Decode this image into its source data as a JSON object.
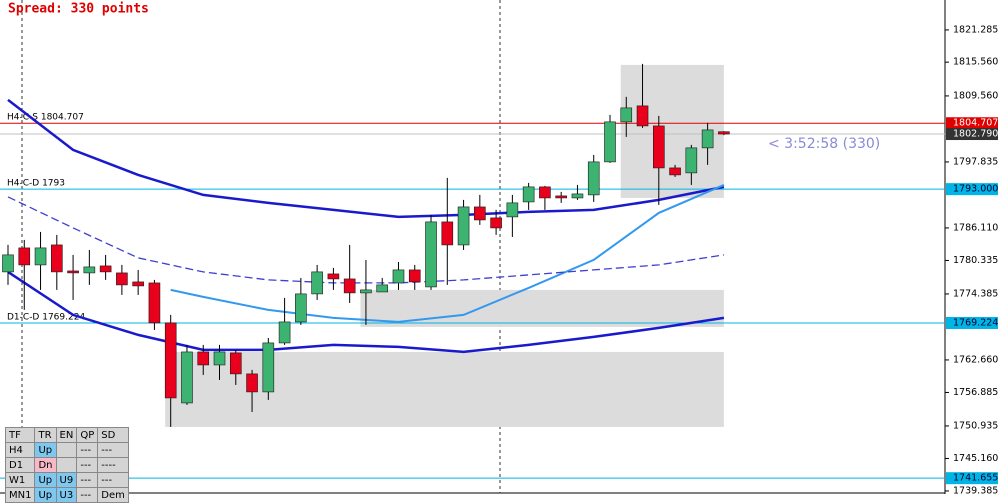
{
  "chart_data": {
    "type": "candlestick",
    "spread_label": "Spread: 330 points",
    "timer_label": "< 3:52:58 (330)",
    "up_color": "#3cb371",
    "down_color": "#e8001c",
    "ylim": [
      1739.2,
      1826.6
    ],
    "yticks": [
      1821.285,
      {
        "value": 1815.56,
        "label": "1815.560"
      },
      {
        "value": 1809.56,
        "label": "1809.560"
      },
      1797.835,
      {
        "value": 1786.11,
        "label": "1786.110"
      },
      1780.335,
      1774.385,
      {
        "value": 1762.66,
        "label": "1762.660"
      },
      1756.885,
      1750.935,
      {
        "value": 1745.16,
        "label": "1745.160"
      },
      1739.385
    ],
    "candles": {
      "open": [
        1778.3,
        1782.56,
        1779.54,
        1783.09,
        1778.47,
        1778.12,
        1779.36,
        1778.12,
        1776.52,
        1776.34,
        1769.24,
        1755.02,
        1764.08,
        1761.77,
        1763.91,
        1760.18,
        1756.98,
        1765.68,
        1769.41,
        1774.39,
        1777.94,
        1777.05,
        1774.57,
        1774.74,
        1776.34,
        1778.65,
        1775.63,
        1787.18,
        1783.09,
        1789.84,
        1787.89,
        1788.07,
        1790.73,
        1793.4,
        1791.8,
        1791.44,
        1791.98,
        1797.84,
        1804.95,
        1807.79,
        1804.23,
        1796.77,
        1795.89,
        1800.33,
        1803.2
      ],
      "high": [
        1783.09,
        1783.98,
        1785.4,
        1784.87,
        1781.32,
        1782.2,
        1781.32,
        1779.54,
        1778.65,
        1776.88,
        1770.66,
        1765.33,
        1765.33,
        1765.33,
        1764.44,
        1760.89,
        1766.57,
        1773.68,
        1777.23,
        1779.54,
        1779.01,
        1783.09,
        1780.43,
        1777.23,
        1780.07,
        1779.54,
        1788.42,
        1795.0,
        1791.09,
        1791.98,
        1789.31,
        1791.98,
        1794.11,
        1793.58,
        1792.51,
        1793.75,
        1799.08,
        1806.19,
        1809.39,
        1815.25,
        1806.01,
        1797.31,
        1800.86,
        1804.77,
        1803.3
      ],
      "low": [
        1775.99,
        1771.55,
        1775.1,
        1775.1,
        1773.32,
        1775.99,
        1776.88,
        1774.21,
        1774.21,
        1767.99,
        1750.76,
        1754.67,
        1760.0,
        1759.11,
        1758.22,
        1753.42,
        1755.56,
        1765.33,
        1768.88,
        1773.32,
        1775.1,
        1772.79,
        1768.88,
        1774.74,
        1775.1,
        1775.1,
        1775.1,
        1775.99,
        1782.2,
        1786.65,
        1784.87,
        1784.51,
        1789.31,
        1789.31,
        1790.56,
        1791.09,
        1790.73,
        1797.66,
        1802.28,
        1803.88,
        1790.2,
        1795.17,
        1793.75,
        1797.31,
        1802.6
      ],
      "close": [
        1781.32,
        1779.54,
        1782.56,
        1778.3,
        1778.12,
        1779.18,
        1778.3,
        1775.99,
        1775.81,
        1769.24,
        1755.91,
        1764.08,
        1761.77,
        1764.08,
        1760.18,
        1756.98,
        1765.68,
        1769.41,
        1774.39,
        1778.3,
        1777.05,
        1774.57,
        1775.1,
        1775.99,
        1778.65,
        1776.52,
        1787.18,
        1783.09,
        1789.84,
        1787.53,
        1786.11,
        1790.56,
        1793.4,
        1791.44,
        1791.44,
        1792.15,
        1797.84,
        1804.95,
        1807.43,
        1804.23,
        1796.77,
        1795.53,
        1800.33,
        1803.52,
        1802.79
      ]
    },
    "zones": [
      {
        "from": 38,
        "top": 1815.07,
        "bottom": 1791.44
      },
      {
        "from": 22,
        "top": 1775.1,
        "bottom": 1768.53
      },
      {
        "from": 10,
        "top": 1764.08,
        "bottom": 1750.76
      }
    ],
    "lines": [
      {
        "color": "#1a1acd",
        "width": 2.5,
        "dashed": false,
        "x": [
          0,
          4,
          8,
          12,
          16,
          20,
          24,
          28,
          32,
          36,
          40,
          44
        ],
        "values": [
          1808.85,
          1799.97,
          1795.53,
          1791.98,
          1790.56,
          1789.31,
          1788.07,
          1788.42,
          1788.96,
          1789.31,
          1791.09,
          1793.4
        ]
      },
      {
        "color": "#1a1acd",
        "width": 2.5,
        "dashed": false,
        "x": [
          0,
          4,
          8,
          12,
          16,
          20,
          24,
          28,
          32,
          36,
          40,
          44
        ],
        "values": [
          1778.3,
          1770.66,
          1767.1,
          1764.44,
          1764.44,
          1765.33,
          1764.97,
          1764.08,
          1765.33,
          1766.75,
          1768.35,
          1770.12
        ]
      },
      {
        "color": "#3399ee",
        "width": 2,
        "dashed": false,
        "x": [
          10,
          12,
          16,
          20,
          24,
          28,
          32,
          36,
          40,
          44
        ],
        "values": [
          1775.1,
          1773.85,
          1771.55,
          1770.12,
          1769.41,
          1770.66,
          1775.45,
          1780.43,
          1788.78,
          1793.75
        ]
      },
      {
        "color": "#4040d0",
        "width": 1.3,
        "dashed": true,
        "x": [
          0,
          4,
          8,
          12,
          16,
          20,
          24,
          28,
          32,
          36,
          40,
          44
        ],
        "values": [
          1791.62,
          1786.11,
          1780.78,
          1778.3,
          1776.88,
          1776.34,
          1776.34,
          1776.88,
          1777.76,
          1778.65,
          1779.54,
          1781.32
        ]
      }
    ],
    "levels": [
      {
        "price": 1804.707,
        "text": "H4-C-S 1804.707",
        "color": "#e00000"
      },
      {
        "price": {
          "value": 1793,
          "label": "1793.000"
        },
        "text": "H4-C-D 1793",
        "color": "#00b4e6"
      },
      {
        "price": 1769.224,
        "text": "D1-C-D 1769.224",
        "color": "#00b4e6"
      },
      {
        "price": 1741.655,
        "color": "#00b4e6"
      }
    ],
    "current_price": {
      "value": 1802.79,
      "label": "1802.790"
    },
    "trend_table": {
      "header": [
        "TF",
        "TR",
        "EN",
        "QP",
        "SD"
      ],
      "rows": [
        [
          "H4",
          "Up",
          null,
          "---",
          "---"
        ],
        [
          "D1",
          "Dn",
          null,
          "---",
          "----"
        ],
        [
          "W1",
          "Up",
          "U9",
          "---",
          "---"
        ],
        [
          "MN1",
          "Up",
          "U3",
          "---",
          "Dem"
        ]
      ],
      "cell_colors": [
        [
          null,
          "#7ec8f0",
          null,
          null,
          null
        ],
        [
          null,
          "#f7b8c8",
          null,
          null,
          null
        ],
        [
          null,
          "#7ec8f0",
          "#7ec8f0",
          null,
          null
        ],
        [
          null,
          "#7ec8f0",
          "#7ec8f0",
          null,
          null
        ]
      ]
    }
  }
}
